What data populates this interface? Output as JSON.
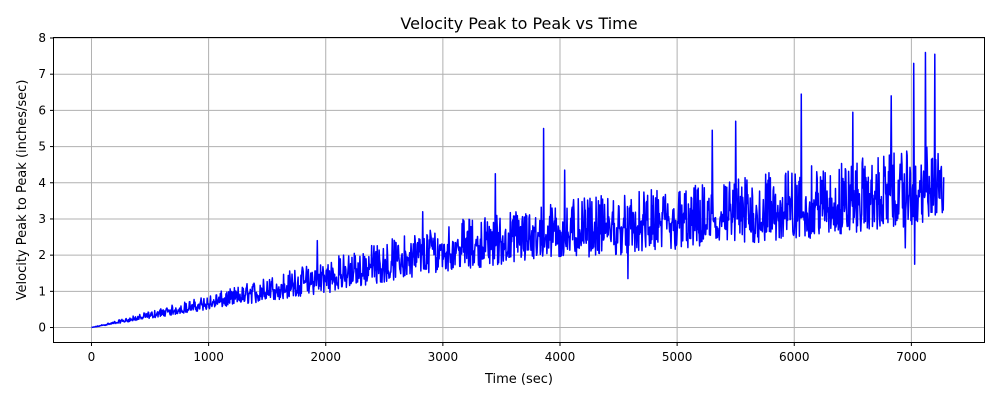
{
  "chart_data": {
    "type": "line",
    "title": "Velocity Peak to Peak vs Time",
    "xlabel": "Time (sec)",
    "ylabel": "Velocity Peak to Peak (inches/sec)",
    "xlim": [
      -320,
      7620
    ],
    "ylim": [
      -0.4,
      8
    ],
    "xticks": [
      0,
      1000,
      2000,
      3000,
      4000,
      5000,
      6000,
      7000
    ],
    "yticks": [
      0,
      1,
      2,
      3,
      4,
      5,
      6,
      7,
      8
    ],
    "grid": true,
    "legend": "none",
    "series": [
      {
        "color": "#0000ff",
        "x_range": [
          0,
          7280
        ],
        "trend": {
          "x": [
            0,
            1000,
            2000,
            3000,
            4000,
            5000,
            6000,
            7000,
            7280
          ],
          "center": [
            0.0,
            0.65,
            1.35,
            2.15,
            2.6,
            2.85,
            3.2,
            3.7,
            3.8
          ],
          "band_low": [
            0.0,
            0.5,
            0.95,
            1.55,
            1.9,
            2.1,
            2.4,
            2.8,
            3.0
          ],
          "band_high": [
            0.0,
            0.9,
            1.9,
            2.9,
            3.5,
            3.9,
            4.4,
            4.9,
            5.1
          ]
        },
        "peaks": [
          {
            "x": 1930,
            "y": 2.4
          },
          {
            "x": 2830,
            "y": 3.2
          },
          {
            "x": 3450,
            "y": 4.25
          },
          {
            "x": 3860,
            "y": 5.5
          },
          {
            "x": 4040,
            "y": 4.35
          },
          {
            "x": 5300,
            "y": 5.45
          },
          {
            "x": 5500,
            "y": 5.7
          },
          {
            "x": 6060,
            "y": 6.45
          },
          {
            "x": 6500,
            "y": 5.95
          },
          {
            "x": 6830,
            "y": 6.4
          },
          {
            "x": 7020,
            "y": 7.3
          },
          {
            "x": 7120,
            "y": 7.6
          },
          {
            "x": 7200,
            "y": 7.55
          }
        ],
        "dips": [
          {
            "x": 4580,
            "y": 1.35
          },
          {
            "x": 6950,
            "y": 2.2
          },
          {
            "x": 7030,
            "y": 1.75
          }
        ]
      }
    ]
  }
}
